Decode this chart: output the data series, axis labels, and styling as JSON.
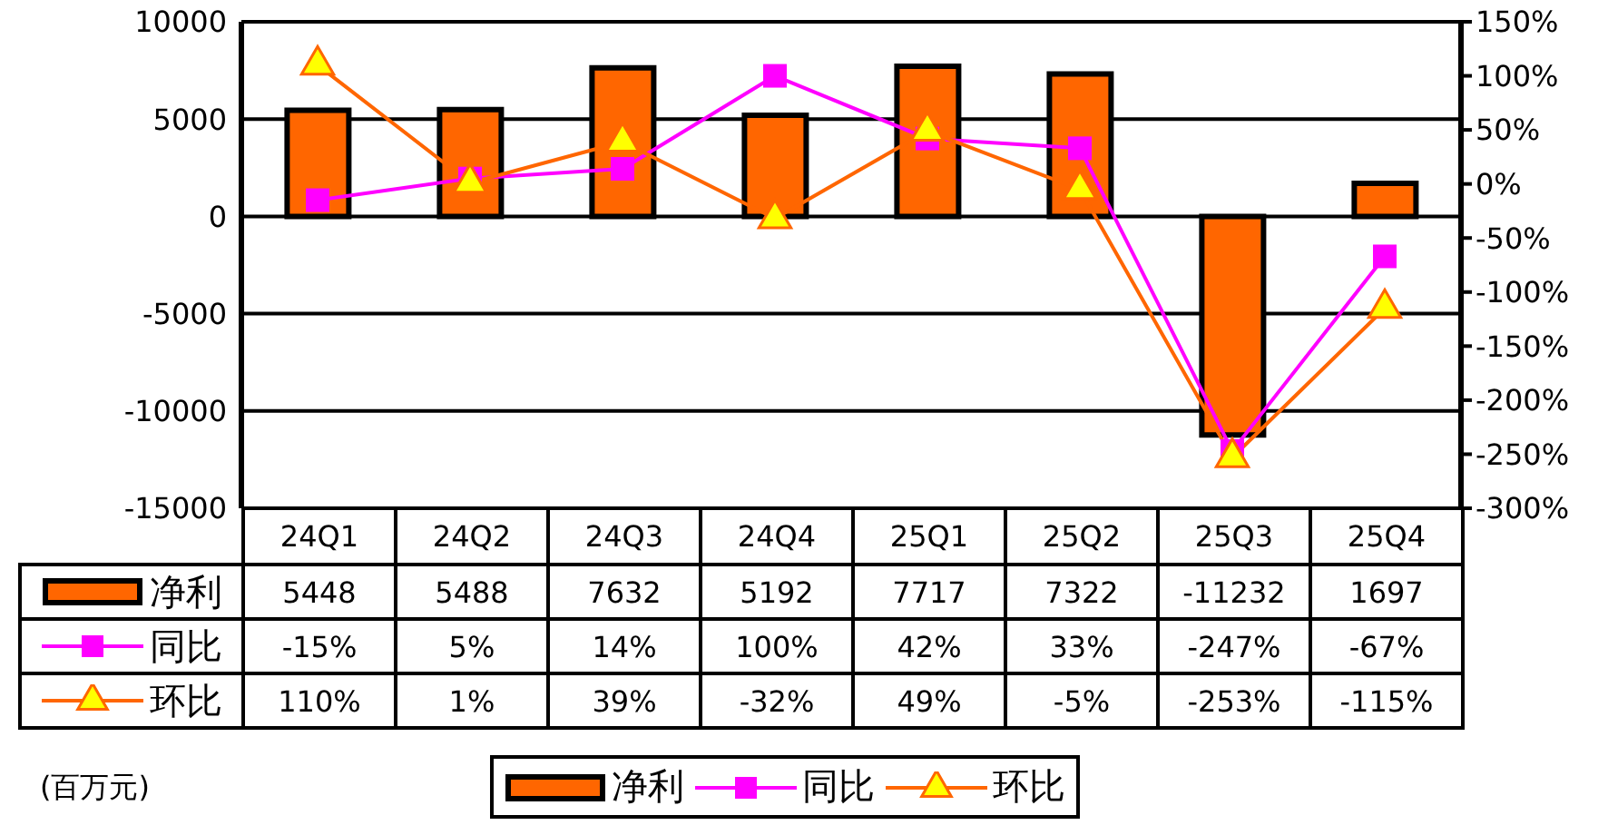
{
  "chart_data": {
    "type": "bar",
    "categories": [
      "24Q1",
      "24Q2",
      "24Q3",
      "24Q4",
      "25Q1",
      "25Q2",
      "25Q3",
      "25Q4"
    ],
    "series": [
      {
        "name": "净利",
        "type": "bar",
        "color": "#ff6600",
        "values": [
          5448,
          5488,
          7632,
          5192,
          7717,
          7322,
          -11232,
          1697
        ],
        "value_labels": [
          "5448",
          "5488",
          "7632",
          "5192",
          "7717",
          "7322",
          "-11232",
          "1697"
        ]
      },
      {
        "name": "同比",
        "type": "line",
        "axis": "y2",
        "marker": "square",
        "color": "#ff00ff",
        "values": [
          -15,
          5,
          14,
          100,
          42,
          33,
          -247,
          -67
        ],
        "value_labels": [
          "-15%",
          "5%",
          "14%",
          "100%",
          "42%",
          "33%",
          "-247%",
          "-67%"
        ]
      },
      {
        "name": "环比",
        "type": "line",
        "axis": "y2",
        "marker": "triangle",
        "color": "#ff6600",
        "values": [
          110,
          1,
          39,
          -32,
          49,
          -5,
          -253,
          -115
        ],
        "value_labels": [
          "110%",
          "1%",
          "39%",
          "-32%",
          "49%",
          "-5%",
          "-253%",
          "-115%"
        ]
      }
    ],
    "ylim": [
      -15000,
      10000
    ],
    "yticks": [
      -15000,
      -10000,
      -5000,
      0,
      5000,
      10000
    ],
    "y2lim": [
      -300,
      150
    ],
    "y2ticks": [
      {
        "value": -300,
        "label": "-300%"
      },
      {
        "value": -250,
        "label": "-250%"
      },
      {
        "value": -200,
        "label": "-200%"
      },
      {
        "value": -150,
        "label": "-150%"
      },
      {
        "value": -100,
        "label": "-100%"
      },
      {
        "value": -50,
        "label": "-50%"
      },
      {
        "value": 0,
        "label": "0%"
      },
      {
        "value": 50,
        "label": "50%"
      },
      {
        "value": 100,
        "label": "100%"
      },
      {
        "value": 150,
        "label": "150%"
      }
    ],
    "grid": "y",
    "legend": "bottom",
    "line_style": "solid",
    "annotations": [
      "(百万元)"
    ]
  }
}
